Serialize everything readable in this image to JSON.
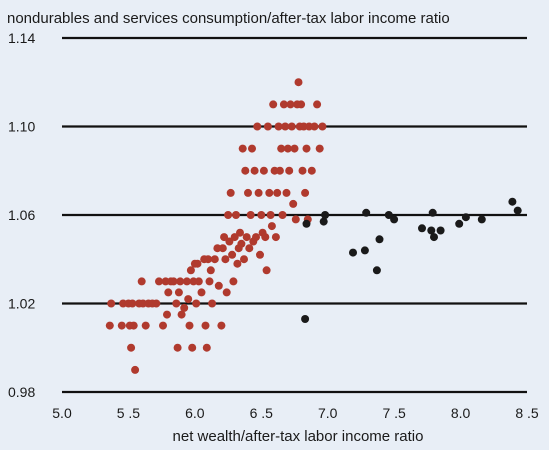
{
  "chart_data": {
    "type": "scatter",
    "title": "nondurables and services consumption/after-tax labor income ratio",
    "xlabel": "net wealth/after-tax labor income ratio",
    "ylabel": "",
    "xlim": [
      5.0,
      8.5
    ],
    "ylim": [
      0.98,
      1.14
    ],
    "x_ticks": [
      5.0,
      5.5,
      6.0,
      6.5,
      7.0,
      7.5,
      8.0,
      8.5
    ],
    "x_tick_labels": [
      "5.0",
      "5 .5",
      "6.0",
      "6 .5",
      "7.0",
      "7 .5",
      "8.0",
      "8 .5"
    ],
    "y_ticks": [
      0.98,
      1.02,
      1.06,
      1.1,
      1.14
    ],
    "y_tick_labels": [
      "0.98",
      "1.02",
      "1.06",
      "1.10",
      "1.14"
    ],
    "grid": "horizontal",
    "background_color": "#e8eef6",
    "series": [
      {
        "color": "#b03a2e",
        "points": [
          [
            5.36,
            1.01
          ],
          [
            5.37,
            1.02
          ],
          [
            5.45,
            1.01
          ],
          [
            5.46,
            1.02
          ],
          [
            5.5,
            1.02
          ],
          [
            5.51,
            1.01
          ],
          [
            5.52,
            1.0
          ],
          [
            5.53,
            1.02
          ],
          [
            5.54,
            1.01
          ],
          [
            5.55,
            0.99
          ],
          [
            5.58,
            1.02
          ],
          [
            5.6,
            1.03
          ],
          [
            5.61,
            1.02
          ],
          [
            5.63,
            1.01
          ],
          [
            5.65,
            1.02
          ],
          [
            5.68,
            1.02
          ],
          [
            5.71,
            1.02
          ],
          [
            5.73,
            1.03
          ],
          [
            5.76,
            1.01
          ],
          [
            5.78,
            1.03
          ],
          [
            5.79,
            1.015
          ],
          [
            5.8,
            1.025
          ],
          [
            5.82,
            1.03
          ],
          [
            5.84,
            1.03
          ],
          [
            5.86,
            1.02
          ],
          [
            5.87,
            1.0
          ],
          [
            5.88,
            1.025
          ],
          [
            5.89,
            1.03
          ],
          [
            5.9,
            1.015
          ],
          [
            5.92,
            1.018
          ],
          [
            5.94,
            1.03
          ],
          [
            5.95,
            1.022
          ],
          [
            5.96,
            1.01
          ],
          [
            5.97,
            1.035
          ],
          [
            5.98,
            1.0
          ],
          [
            5.99,
            1.03
          ],
          [
            6.0,
            1.038
          ],
          [
            6.01,
            1.02
          ],
          [
            6.02,
            1.038
          ],
          [
            6.03,
            1.03
          ],
          [
            6.05,
            1.025
          ],
          [
            6.07,
            1.04
          ],
          [
            6.08,
            1.01
          ],
          [
            6.09,
            1.0
          ],
          [
            6.1,
            1.04
          ],
          [
            6.11,
            1.03
          ],
          [
            6.12,
            1.035
          ],
          [
            6.13,
            1.02
          ],
          [
            6.15,
            1.04
          ],
          [
            6.17,
            1.045
          ],
          [
            6.18,
            1.028
          ],
          [
            6.2,
            1.01
          ],
          [
            6.21,
            1.045
          ],
          [
            6.22,
            1.05
          ],
          [
            6.23,
            1.04
          ],
          [
            6.24,
            1.025
          ],
          [
            6.25,
            1.06
          ],
          [
            6.26,
            1.048
          ],
          [
            6.27,
            1.07
          ],
          [
            6.28,
            1.042
          ],
          [
            6.29,
            1.03
          ],
          [
            6.3,
            1.05
          ],
          [
            6.31,
            1.06
          ],
          [
            6.32,
            1.038
          ],
          [
            6.33,
            1.045
          ],
          [
            6.34,
            1.052
          ],
          [
            6.35,
            1.047
          ],
          [
            6.36,
            1.09
          ],
          [
            6.37,
            1.04
          ],
          [
            6.38,
            1.08
          ],
          [
            6.39,
            1.05
          ],
          [
            6.4,
            1.07
          ],
          [
            6.41,
            1.045
          ],
          [
            6.42,
            1.06
          ],
          [
            6.43,
            1.09
          ],
          [
            6.44,
            1.048
          ],
          [
            6.45,
            1.08
          ],
          [
            6.46,
            1.05
          ],
          [
            6.47,
            1.1
          ],
          [
            6.48,
            1.07
          ],
          [
            6.49,
            1.042
          ],
          [
            6.5,
            1.06
          ],
          [
            6.51,
            1.052
          ],
          [
            6.52,
            1.08
          ],
          [
            6.53,
            1.05
          ],
          [
            6.54,
            1.035
          ],
          [
            6.55,
            1.1
          ],
          [
            6.56,
            1.07
          ],
          [
            6.57,
            1.06
          ],
          [
            6.58,
            1.055
          ],
          [
            6.59,
            1.11
          ],
          [
            6.6,
            1.08
          ],
          [
            6.61,
            1.05
          ],
          [
            6.62,
            1.07
          ],
          [
            6.63,
            1.1
          ],
          [
            6.64,
            1.08
          ],
          [
            6.65,
            1.09
          ],
          [
            6.66,
            1.06
          ],
          [
            6.67,
            1.11
          ],
          [
            6.68,
            1.1
          ],
          [
            6.69,
            1.07
          ],
          [
            6.7,
            1.09
          ],
          [
            6.71,
            1.08
          ],
          [
            6.72,
            1.11
          ],
          [
            6.73,
            1.1
          ],
          [
            6.74,
            1.065
          ],
          [
            6.75,
            1.09
          ],
          [
            6.76,
            1.058
          ],
          [
            6.77,
            1.11
          ],
          [
            6.78,
            1.12
          ],
          [
            6.79,
            1.1
          ],
          [
            6.8,
            1.11
          ],
          [
            6.81,
            1.08
          ],
          [
            6.82,
            1.1
          ],
          [
            6.83,
            1.07
          ],
          [
            6.84,
            1.09
          ],
          [
            6.85,
            1.058
          ],
          [
            6.86,
            1.1
          ],
          [
            6.88,
            1.08
          ],
          [
            6.9,
            1.1
          ],
          [
            6.92,
            1.11
          ],
          [
            6.94,
            1.09
          ],
          [
            6.96,
            1.1
          ]
        ]
      },
      {
        "color": "#1a1a1a",
        "points": [
          [
            6.83,
            1.013
          ],
          [
            6.84,
            1.056
          ],
          [
            6.97,
            1.057
          ],
          [
            6.98,
            1.06
          ],
          [
            7.19,
            1.043
          ],
          [
            7.28,
            1.044
          ],
          [
            7.29,
            1.061
          ],
          [
            7.37,
            1.035
          ],
          [
            7.39,
            1.049
          ],
          [
            7.46,
            1.06
          ],
          [
            7.5,
            1.058
          ],
          [
            7.71,
            1.054
          ],
          [
            7.78,
            1.053
          ],
          [
            7.79,
            1.061
          ],
          [
            7.8,
            1.05
          ],
          [
            7.85,
            1.053
          ],
          [
            7.99,
            1.056
          ],
          [
            8.04,
            1.059
          ],
          [
            8.16,
            1.058
          ],
          [
            8.39,
            1.066
          ],
          [
            8.43,
            1.062
          ]
        ]
      }
    ]
  }
}
